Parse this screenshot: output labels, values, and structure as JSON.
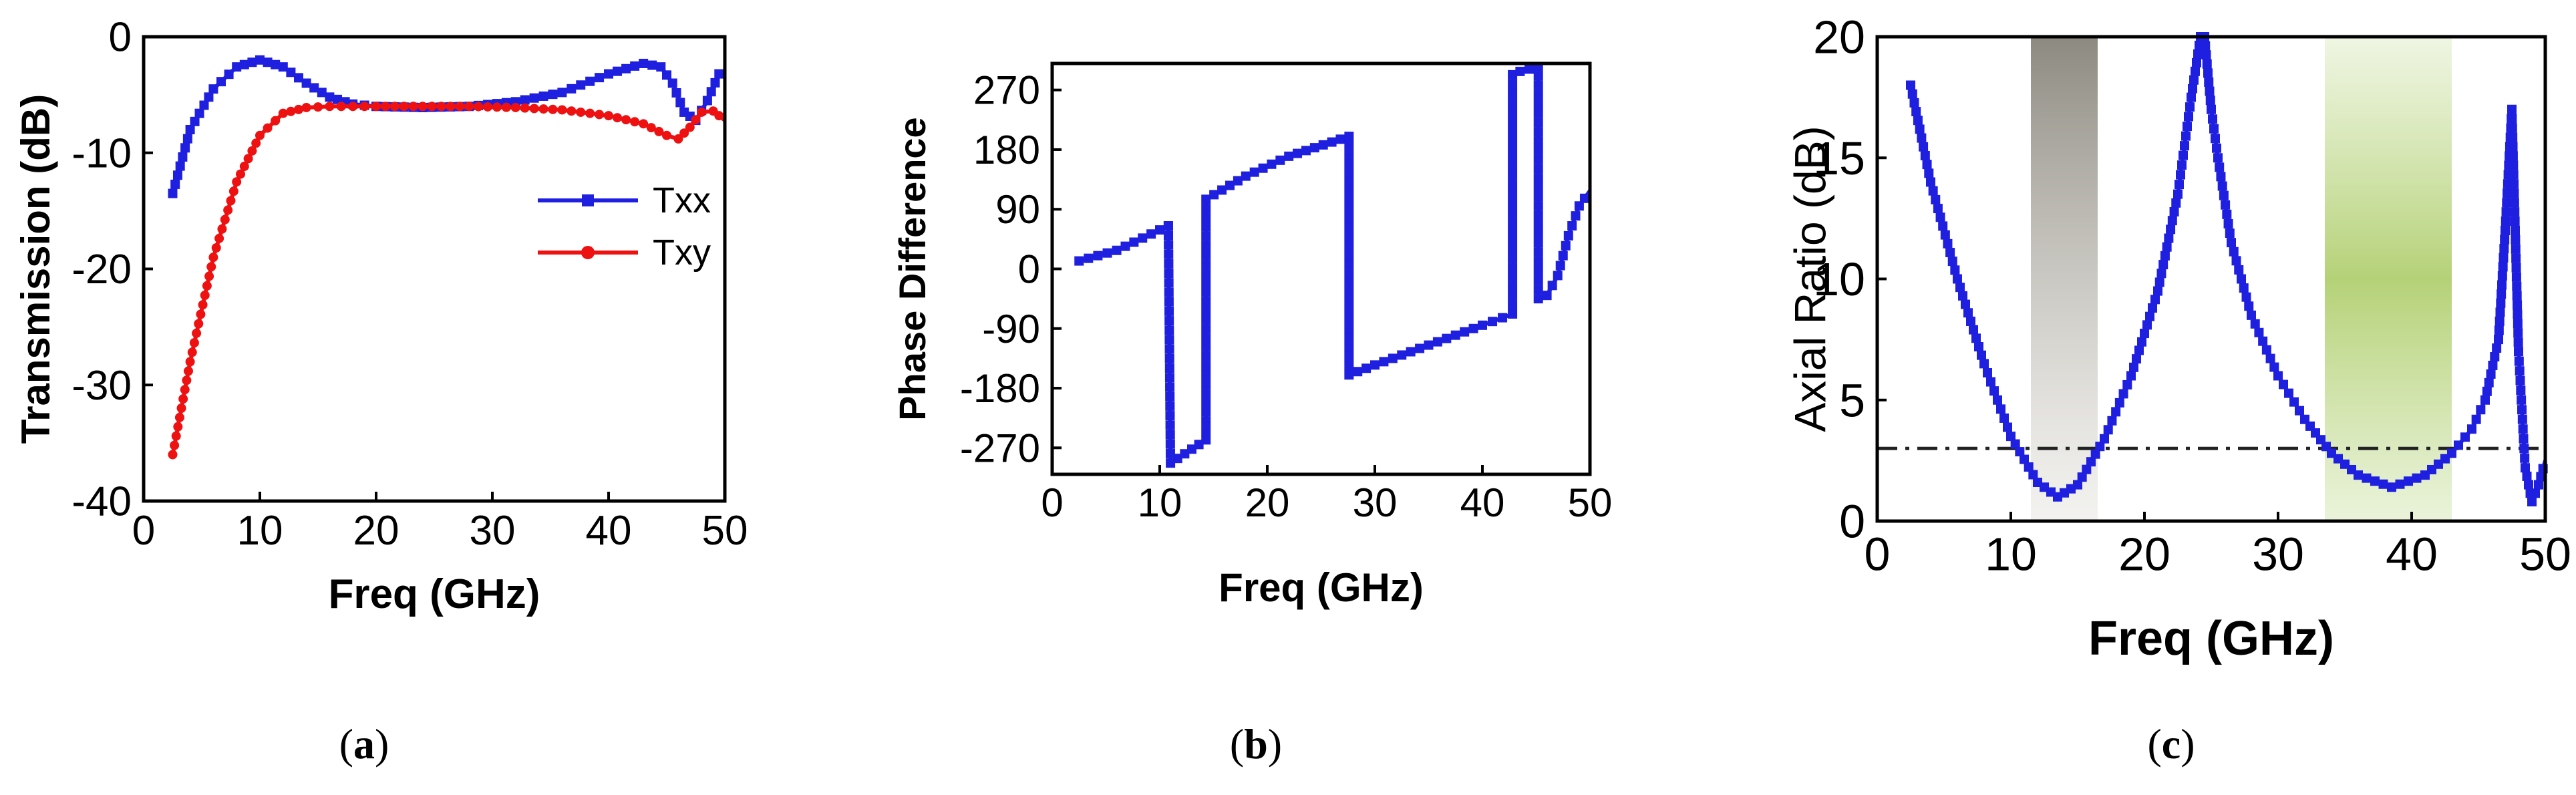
{
  "chart_data": [
    {
      "type": "line",
      "caption_open": "(",
      "caption": "a",
      "caption_close": ")",
      "xlabel": "Freq (GHz)",
      "ylabel": "Transmission (dB)",
      "xlim": [
        0,
        50
      ],
      "ylim": [
        -40,
        0
      ],
      "xticks": [
        "0",
        "10",
        "20",
        "30",
        "40",
        "50"
      ],
      "yticks": [
        "0",
        "-10",
        "-20",
        "-30",
        "-40"
      ],
      "legend_position": "right-middle",
      "series": [
        {
          "name": "Txx",
          "color": "#1f1fe0",
          "marker": "square",
          "x": [
            2.5,
            4,
            6,
            8,
            10,
            12,
            14,
            16,
            18,
            20,
            24,
            28,
            32,
            36,
            40,
            43,
            44.5,
            45.5,
            46.5,
            47.5,
            48.5,
            49.5,
            50
          ],
          "y": [
            -13.5,
            -8,
            -4.5,
            -2.6,
            -2.0,
            -2.6,
            -4.0,
            -5.2,
            -5.8,
            -6.0,
            -6.1,
            -6.0,
            -5.6,
            -4.8,
            -3.2,
            -2.3,
            -2.6,
            -4.0,
            -6.5,
            -7.2,
            -5.5,
            -3.2,
            -3.0
          ]
        },
        {
          "name": "Txy",
          "color": "#ee1111",
          "marker": "circle",
          "x": [
            2.5,
            4,
            6,
            8,
            10,
            12,
            14,
            16,
            18,
            20,
            24,
            28,
            32,
            36,
            40,
            43,
            45,
            46,
            47,
            48,
            49,
            50
          ],
          "y": [
            -36,
            -28,
            -19,
            -12.5,
            -8.5,
            -6.6,
            -6.1,
            -6.0,
            -6.0,
            -6.0,
            -6.0,
            -6.0,
            -6.1,
            -6.3,
            -6.8,
            -7.5,
            -8.5,
            -8.8,
            -7.8,
            -6.5,
            -6.4,
            -7.2
          ]
        }
      ]
    },
    {
      "type": "line",
      "caption_open": "(",
      "caption": "b",
      "caption_close": ")",
      "xlabel": "Freq (GHz)",
      "ylabel": "Phase Difference",
      "xlim": [
        0,
        50
      ],
      "ylim": [
        -310,
        310
      ],
      "xticks": [
        "0",
        "10",
        "20",
        "30",
        "40",
        "50"
      ],
      "yticks": [
        "270",
        "180",
        "90",
        "0",
        "-90",
        "-180",
        "-270"
      ],
      "series": [
        {
          "name": "",
          "color": "#1f1fe0",
          "marker": "square",
          "x": [
            2.5,
            6,
            10.8,
            10.8,
            11,
            14.3,
            14.3,
            18,
            22,
            27.6,
            27.6,
            30,
            35,
            40,
            42.8,
            42.8,
            43.5,
            45.2,
            45.2,
            46,
            47,
            48,
            49,
            50
          ],
          "y": [
            12,
            28,
            65,
            65,
            -293,
            -258,
            105,
            140,
            170,
            200,
            -160,
            -145,
            -115,
            -85,
            -68,
            293,
            298,
            305,
            -45,
            -40,
            -10,
            50,
            95,
            118
          ]
        }
      ]
    },
    {
      "type": "line",
      "caption_open": "(",
      "caption": "c",
      "caption_close": ")",
      "xlabel": "Freq (GHz)",
      "ylabel": "Axial Ratio (dB)",
      "xlim": [
        0,
        50
      ],
      "ylim": [
        0,
        20
      ],
      "xticks": [
        "0",
        "10",
        "20",
        "30",
        "40",
        "50"
      ],
      "yticks": [
        "0",
        "5",
        "10",
        "15",
        "20"
      ],
      "reference_line": 3,
      "shaded_bands": [
        {
          "from": 11.5,
          "to": 16.5,
          "color": "#8c8a80"
        },
        {
          "from": 33.5,
          "to": 43,
          "color": "#9cc24a"
        }
      ],
      "series": [
        {
          "name": "",
          "color": "#1f1fe0",
          "marker": "square",
          "x": [
            2.5,
            4,
            6,
            8,
            10,
            12,
            13.5,
            15,
            17,
            19,
            21,
            22.5,
            23.5,
            24.2,
            24.5,
            25,
            25.5,
            26.5,
            28,
            30,
            32,
            34,
            36,
            38.5,
            41,
            43,
            44.5,
            45.5,
            46.5,
            47,
            47.5,
            48,
            48.5,
            49,
            49.5,
            50
          ],
          "y": [
            18,
            14,
            10,
            6.5,
            3.5,
            1.6,
            1.0,
            1.5,
            3.4,
            6.0,
            9.5,
            13.5,
            17.5,
            20,
            20,
            17,
            15,
            11.5,
            8.5,
            6.0,
            4.2,
            2.8,
            1.9,
            1.4,
            1.9,
            2.8,
            3.8,
            5.0,
            7.5,
            12,
            17,
            7.0,
            2.2,
            0.8,
            1.5,
            2.5
          ]
        }
      ]
    }
  ]
}
